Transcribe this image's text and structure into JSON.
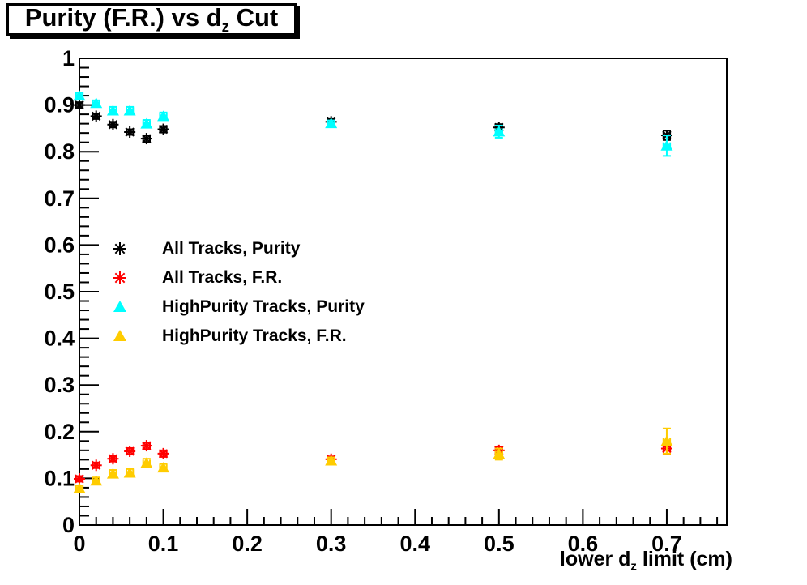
{
  "title": {
    "prefix": "Purity (F.R.) vs d",
    "subscript": "z",
    "suffix": " Cut"
  },
  "x_axis_title": {
    "prefix": "lower d",
    "subscript": "z",
    "suffix": " limit (cm)"
  },
  "legend": {
    "items": [
      {
        "label": "All Tracks, Purity",
        "marker": "asterisk",
        "color": "#000000"
      },
      {
        "label": "All Tracks, F.R.",
        "marker": "asterisk",
        "color": "#ff0000"
      },
      {
        "label": "HighPurity Tracks, Purity",
        "marker": "triangle",
        "color": "#00ffff"
      },
      {
        "label": "HighPurity Tracks, F.R.",
        "marker": "triangle",
        "color": "#ffcc00"
      }
    ]
  },
  "chart_data": {
    "type": "scatter",
    "title": "Purity (F.R.) vs d_z Cut",
    "xlabel": "lower d_z limit (cm)",
    "ylabel": "",
    "xlim": [
      0,
      0.7715
    ],
    "ylim": [
      0,
      1
    ],
    "grid": false,
    "legend_position": "inside-left-middle",
    "x_ticks": {
      "values": [
        0,
        0.1,
        0.2,
        0.3,
        0.4,
        0.5,
        0.6,
        0.7
      ],
      "labels": [
        "0",
        "0.1",
        "0.2",
        "0.3",
        "0.4",
        "0.5",
        "0.6",
        "0.7"
      ]
    },
    "y_ticks": {
      "values": [
        0,
        0.1,
        0.2,
        0.3,
        0.4,
        0.5,
        0.6,
        0.7,
        0.8,
        0.9,
        1
      ],
      "labels": [
        "0",
        "0.1",
        "0.2",
        "0.3",
        "0.4",
        "0.5",
        "0.6",
        "0.7",
        "0.8",
        "0.9",
        "1"
      ]
    },
    "minor_tick_step": {
      "x": 0.02,
      "y": 0.02
    },
    "x": [
      0,
      0.02,
      0.04,
      0.06,
      0.08,
      0.1,
      0.3,
      0.5,
      0.7
    ],
    "xerr": 0.004,
    "series": [
      {
        "name": "All Tracks, Purity",
        "marker": "asterisk",
        "color": "#000000",
        "y": [
          0.9,
          0.876,
          0.858,
          0.842,
          0.828,
          0.848,
          0.864,
          0.852,
          0.835
        ],
        "yerr": [
          0.006,
          0.006,
          0.006,
          0.006,
          0.007,
          0.007,
          0.006,
          0.007,
          0.01
        ]
      },
      {
        "name": "All Tracks, F.R.",
        "marker": "asterisk",
        "color": "#ff0000",
        "y": [
          0.099,
          0.128,
          0.142,
          0.158,
          0.17,
          0.153,
          0.141,
          0.16,
          0.164
        ],
        "yerr": [
          0.006,
          0.006,
          0.006,
          0.007,
          0.007,
          0.007,
          0.006,
          0.008,
          0.012
        ]
      },
      {
        "name": "HighPurity Tracks, Purity",
        "marker": "triangle",
        "color": "#00ffff",
        "y": [
          0.92,
          0.904,
          0.888,
          0.888,
          0.86,
          0.876,
          0.861,
          0.843,
          0.813
        ],
        "yerr": [
          0.006,
          0.006,
          0.008,
          0.008,
          0.008,
          0.008,
          0.006,
          0.013,
          0.022
        ]
      },
      {
        "name": "HighPurity Tracks, F.R.",
        "marker": "triangle",
        "color": "#ffcc00",
        "y": [
          0.079,
          0.095,
          0.11,
          0.112,
          0.133,
          0.123,
          0.138,
          0.152,
          0.18
        ],
        "yerr": [
          0.006,
          0.007,
          0.008,
          0.008,
          0.009,
          0.008,
          0.007,
          0.012,
          0.027
        ]
      }
    ]
  }
}
